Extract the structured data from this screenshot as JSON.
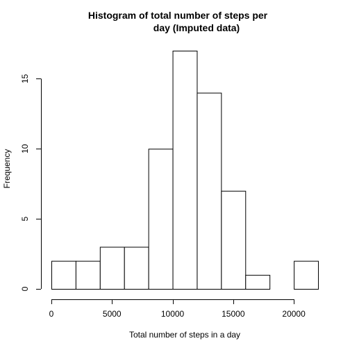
{
  "chart_data": {
    "type": "bar",
    "title_line1": "Histogram of total number of steps per",
    "title_line2": "day (Imputed data)",
    "xlabel": "Total number of steps in a day",
    "ylabel": "Frequency",
    "bin_edges": [
      0,
      2000,
      4000,
      6000,
      8000,
      10000,
      12000,
      14000,
      16000,
      18000,
      20000,
      22000
    ],
    "counts": [
      2,
      2,
      3,
      3,
      10,
      17,
      14,
      7,
      1,
      0,
      2
    ],
    "xlim": [
      0,
      22000
    ],
    "ylim": [
      0,
      17
    ],
    "x_ticks": [
      0,
      5000,
      10000,
      15000,
      20000
    ],
    "y_ticks": [
      0,
      5,
      10,
      15
    ],
    "grid": false,
    "legend": "none"
  }
}
